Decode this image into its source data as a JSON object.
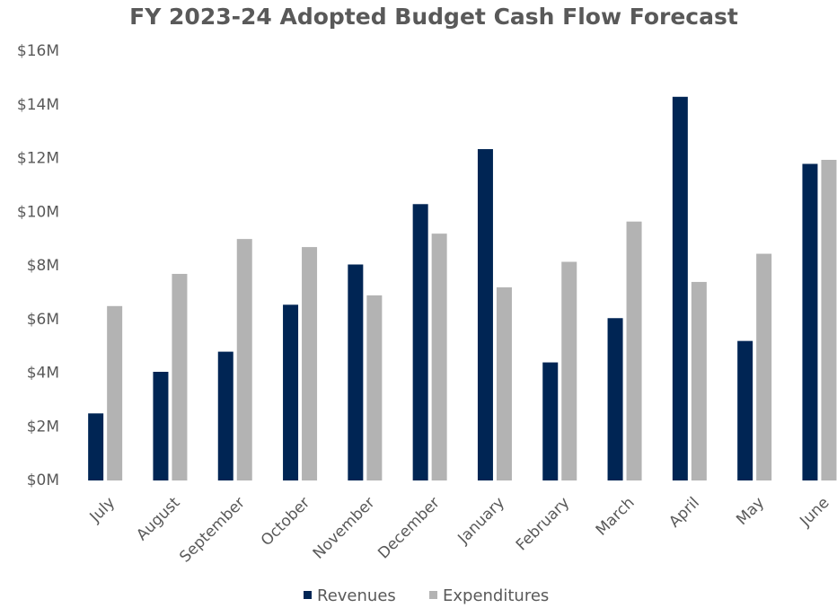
{
  "chart_data": {
    "type": "bar",
    "title": "FY 2023-24 Adopted Budget Cash Flow Forecast",
    "categories": [
      "July",
      "August",
      "September",
      "October",
      "November",
      "December",
      "January",
      "February",
      "March",
      "April",
      "May",
      "June"
    ],
    "series": [
      {
        "name": "Revenues",
        "color": "#002554",
        "values": [
          2.5,
          4.05,
          4.8,
          6.55,
          8.05,
          10.3,
          12.35,
          4.4,
          6.05,
          14.3,
          5.2,
          11.8
        ]
      },
      {
        "name": "Expenditures",
        "color": "#b3b3b3",
        "values": [
          6.5,
          7.7,
          9.0,
          8.7,
          6.9,
          9.2,
          7.2,
          8.15,
          9.65,
          7.4,
          8.45,
          11.95
        ]
      }
    ],
    "ylim": [
      0,
      16
    ],
    "yticks": [
      {
        "value": 0,
        "label": "$0M"
      },
      {
        "value": 2,
        "label": "$2M"
      },
      {
        "value": 4,
        "label": "$4M"
      },
      {
        "value": 6,
        "label": "$6M"
      },
      {
        "value": 8,
        "label": "$8M"
      },
      {
        "value": 10,
        "label": "$10M"
      },
      {
        "value": 12,
        "label": "$12M"
      },
      {
        "value": 14,
        "label": "$14M"
      },
      {
        "value": 16,
        "label": "$16M"
      }
    ],
    "grid": false,
    "legend": "bottom"
  }
}
